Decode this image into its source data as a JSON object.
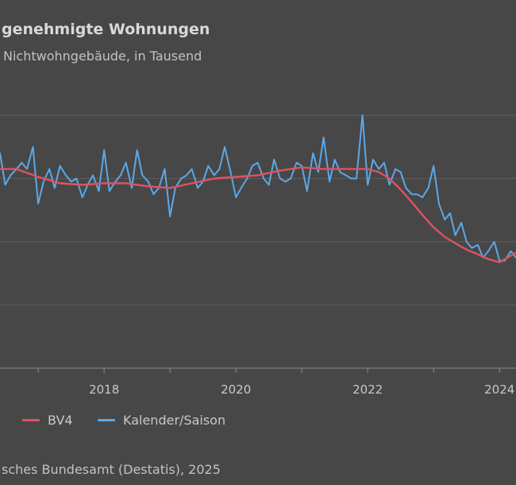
{
  "title": "genehmigte Wohnungen",
  "subtitle": "Nichtwohngebäude, in Tausend",
  "source": "sches Bundesamt (Destatis), 2025",
  "chart_data": {
    "type": "line",
    "xlim": [
      2016.42,
      2024.25
    ],
    "ylim": [
      0,
      8
    ],
    "gridlines_y": [
      2,
      4,
      6,
      8
    ],
    "grid": true,
    "legend_placement": "bottom-left",
    "x_ticks": [
      {
        "value": 2018,
        "label": "2018"
      },
      {
        "value": 2020,
        "label": "2020"
      },
      {
        "value": 2022,
        "label": "2022"
      },
      {
        "value": 2024,
        "label": "2024"
      }
    ],
    "series": [
      {
        "name": "BV4",
        "color": "#e0525f",
        "x": [
          2016.42,
          2016.67,
          2017.0,
          2017.33,
          2017.67,
          2018.0,
          2018.33,
          2018.67,
          2019.0,
          2019.33,
          2019.67,
          2020.0,
          2020.33,
          2020.67,
          2021.0,
          2021.33,
          2021.67,
          2022.0,
          2022.17,
          2022.33,
          2022.5,
          2022.67,
          2022.83,
          2023.0,
          2023.17,
          2023.33,
          2023.5,
          2023.67,
          2023.83,
          2024.0,
          2024.25
        ],
        "y": [
          6.3,
          6.3,
          6.05,
          5.85,
          5.8,
          5.85,
          5.85,
          5.75,
          5.7,
          5.85,
          6.0,
          6.05,
          6.1,
          6.25,
          6.35,
          6.3,
          6.3,
          6.3,
          6.2,
          6.0,
          5.65,
          5.25,
          4.85,
          4.45,
          4.15,
          3.95,
          3.75,
          3.6,
          3.45,
          3.35,
          3.65
        ]
      },
      {
        "name": "Kalender/Saison",
        "color": "#5ba8e8",
        "x": [
          2016.42,
          2016.5,
          2016.58,
          2016.67,
          2016.75,
          2016.83,
          2016.92,
          2017.0,
          2017.08,
          2017.17,
          2017.25,
          2017.33,
          2017.42,
          2017.5,
          2017.58,
          2017.67,
          2017.75,
          2017.83,
          2017.92,
          2018.0,
          2018.08,
          2018.17,
          2018.25,
          2018.33,
          2018.42,
          2018.5,
          2018.58,
          2018.67,
          2018.75,
          2018.83,
          2018.92,
          2019.0,
          2019.08,
          2019.17,
          2019.25,
          2019.33,
          2019.42,
          2019.5,
          2019.58,
          2019.67,
          2019.75,
          2019.83,
          2019.92,
          2020.0,
          2020.08,
          2020.17,
          2020.25,
          2020.33,
          2020.42,
          2020.5,
          2020.58,
          2020.67,
          2020.75,
          2020.83,
          2020.92,
          2021.0,
          2021.08,
          2021.17,
          2021.25,
          2021.33,
          2021.42,
          2021.5,
          2021.58,
          2021.67,
          2021.75,
          2021.83,
          2021.92,
          2022.0,
          2022.08,
          2022.17,
          2022.25,
          2022.33,
          2022.42,
          2022.5,
          2022.58,
          2022.67,
          2022.75,
          2022.83,
          2022.92,
          2023.0,
          2023.08,
          2023.17,
          2023.25,
          2023.33,
          2023.42,
          2023.5,
          2023.58,
          2023.67,
          2023.75,
          2023.83,
          2023.92,
          2024.0,
          2024.08,
          2024.17,
          2024.25
        ],
        "y": [
          6.8,
          5.8,
          6.1,
          6.3,
          6.5,
          6.3,
          7.0,
          5.2,
          5.9,
          6.3,
          5.7,
          6.4,
          6.1,
          5.9,
          6.0,
          5.4,
          5.8,
          6.1,
          5.6,
          6.9,
          5.6,
          5.9,
          6.1,
          6.5,
          5.7,
          6.9,
          6.1,
          5.9,
          5.5,
          5.7,
          6.3,
          4.8,
          5.7,
          6.0,
          6.1,
          6.3,
          5.7,
          5.9,
          6.4,
          6.1,
          6.3,
          7.0,
          6.2,
          5.4,
          5.7,
          6.0,
          6.4,
          6.5,
          6.0,
          5.8,
          6.6,
          6.0,
          5.9,
          6.0,
          6.5,
          6.4,
          5.6,
          6.8,
          6.2,
          7.3,
          5.9,
          6.6,
          6.2,
          6.1,
          6.0,
          6.0,
          8.0,
          5.8,
          6.6,
          6.3,
          6.5,
          5.8,
          6.3,
          6.2,
          5.7,
          5.5,
          5.5,
          5.4,
          5.7,
          6.4,
          5.2,
          4.7,
          4.9,
          4.2,
          4.6,
          4.0,
          3.8,
          3.9,
          3.5,
          3.7,
          4.0,
          3.4,
          3.4,
          3.7,
          3.5
        ]
      }
    ]
  }
}
